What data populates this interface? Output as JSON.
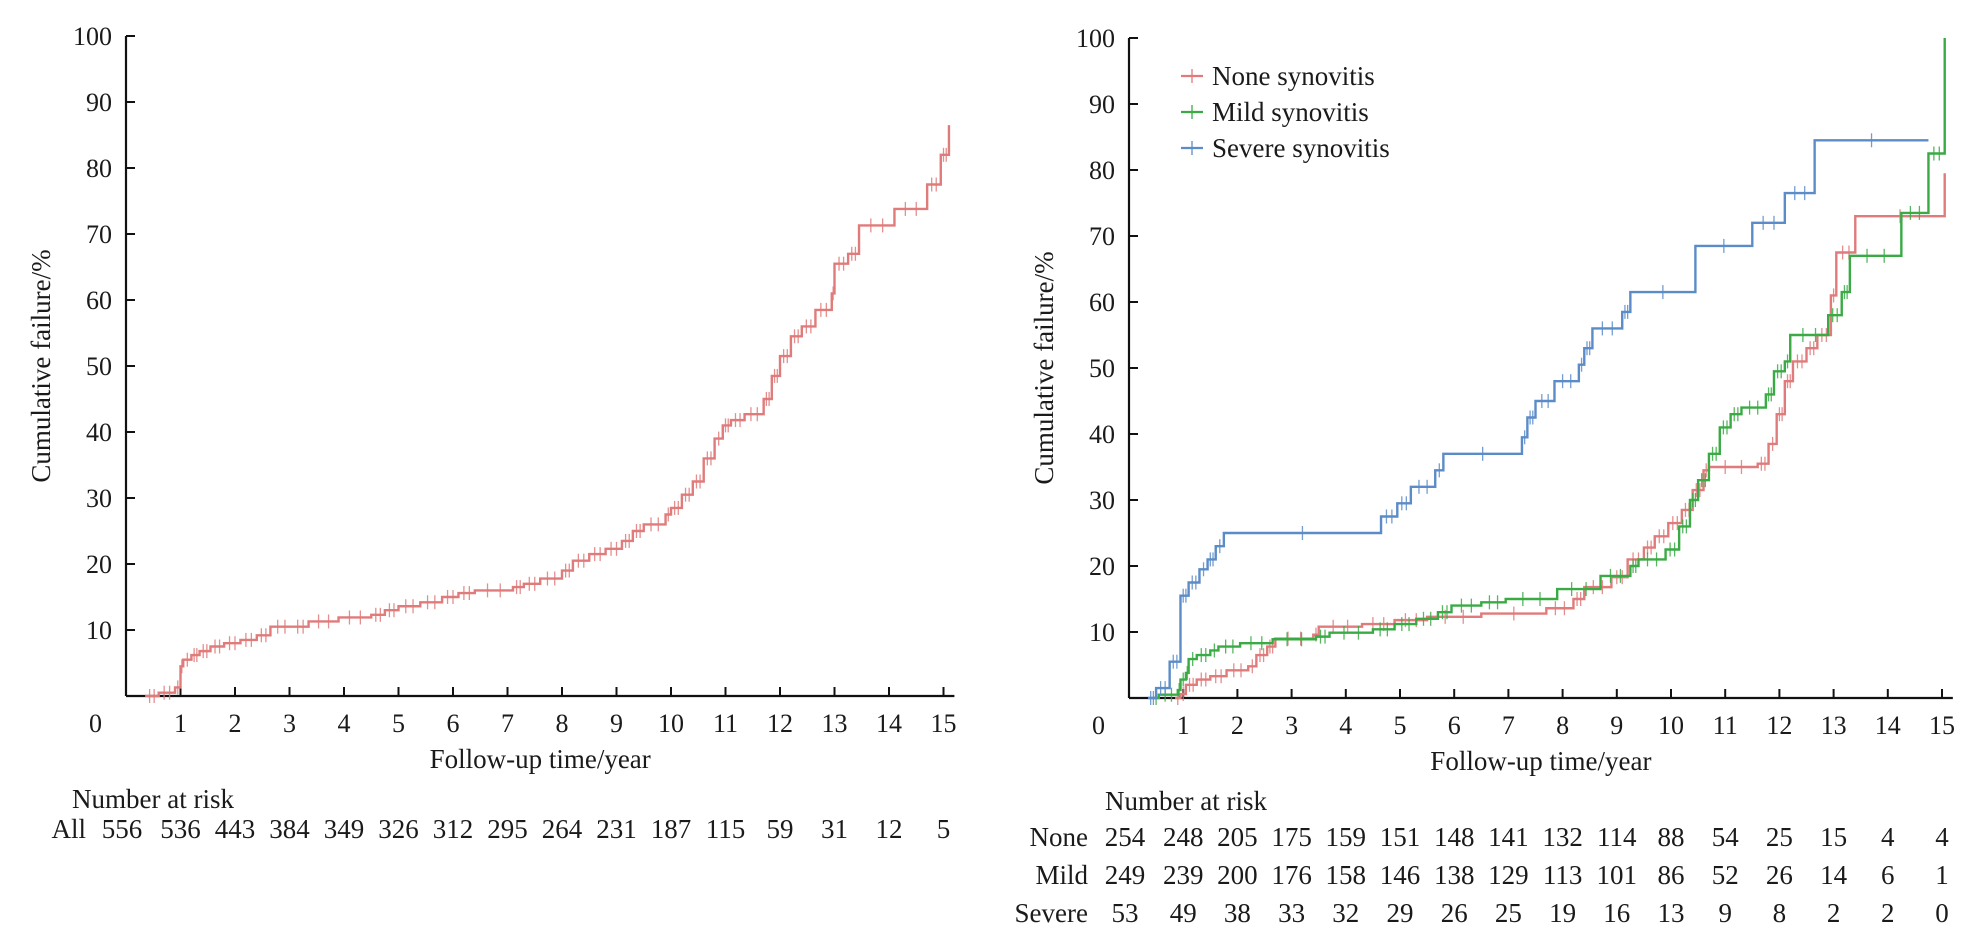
{
  "chart_data": [
    {
      "type": "line",
      "subtype": "kaplan-meier-cumulative-failure",
      "title": "",
      "xlabel": "Follow-up time/year",
      "ylabel": "Cumulative failure/%",
      "xlim": [
        0,
        15.2
      ],
      "ylim": [
        0,
        100
      ],
      "xticks": [
        "0",
        "1",
        "2",
        "3",
        "4",
        "5",
        "6",
        "7",
        "8",
        "9",
        "10",
        "11",
        "12",
        "13",
        "14",
        "15"
      ],
      "yticks": [
        "10",
        "20",
        "30",
        "40",
        "50",
        "60",
        "70",
        "80",
        "90",
        "100"
      ],
      "y_zero_label": "0",
      "grid": false,
      "legend": null,
      "series": [
        {
          "name": "All",
          "color": "#e07b7b",
          "points": [
            [
              0.35,
              0
            ],
            [
              0.6,
              0.5
            ],
            [
              0.9,
              1.3
            ],
            [
              1.0,
              4.5
            ],
            [
              1.05,
              5.5
            ],
            [
              1.2,
              6.2
            ],
            [
              1.35,
              6.8
            ],
            [
              1.55,
              7.5
            ],
            [
              1.8,
              8.0
            ],
            [
              2.1,
              8.5
            ],
            [
              2.4,
              9.2
            ],
            [
              2.65,
              10.5
            ],
            [
              3.05,
              10.5
            ],
            [
              3.35,
              11.3
            ],
            [
              3.9,
              11.9
            ],
            [
              4.5,
              12.3
            ],
            [
              4.75,
              13.0
            ],
            [
              5.0,
              13.6
            ],
            [
              5.4,
              14.2
            ],
            [
              5.8,
              15.0
            ],
            [
              6.1,
              15.6
            ],
            [
              6.4,
              16.0
            ],
            [
              7.1,
              16.5
            ],
            [
              7.3,
              17.0
            ],
            [
              7.6,
              17.8
            ],
            [
              8.0,
              19.0
            ],
            [
              8.2,
              20.5
            ],
            [
              8.5,
              21.5
            ],
            [
              8.8,
              22.3
            ],
            [
              9.1,
              23.5
            ],
            [
              9.3,
              25.0
            ],
            [
              9.5,
              26.0
            ],
            [
              9.9,
              27.5
            ],
            [
              10.0,
              28.5
            ],
            [
              10.2,
              30.5
            ],
            [
              10.4,
              32.5
            ],
            [
              10.6,
              36.0
            ],
            [
              10.8,
              39.0
            ],
            [
              10.95,
              41.0
            ],
            [
              11.1,
              41.8
            ],
            [
              11.35,
              42.7
            ],
            [
              11.7,
              45.0
            ],
            [
              11.85,
              48.5
            ],
            [
              12.0,
              51.5
            ],
            [
              12.2,
              54.5
            ],
            [
              12.4,
              56.0
            ],
            [
              12.65,
              58.5
            ],
            [
              12.95,
              61.0
            ],
            [
              13.0,
              65.5
            ],
            [
              13.25,
              67.0
            ],
            [
              13.45,
              71.3
            ],
            [
              14.1,
              73.8
            ],
            [
              14.7,
              77.5
            ],
            [
              14.95,
              82.0
            ],
            [
              15.1,
              86.5
            ]
          ],
          "censor_marks": true
        }
      ],
      "risk_table": {
        "title": "Number at risk",
        "rows": [
          {
            "label": "All",
            "color": "#e07b7b",
            "values": [
              556,
              536,
              443,
              384,
              349,
              326,
              312,
              295,
              264,
              231,
              187,
              115,
              59,
              31,
              12,
              5
            ]
          }
        ]
      }
    },
    {
      "type": "line",
      "subtype": "kaplan-meier-cumulative-failure",
      "title": "",
      "xlabel": "Follow-up time/year",
      "ylabel": "Cumulative failure/%",
      "xlim": [
        0,
        15.2
      ],
      "ylim": [
        0,
        100
      ],
      "xticks": [
        "0",
        "1",
        "2",
        "3",
        "4",
        "5",
        "6",
        "7",
        "8",
        "9",
        "10",
        "11",
        "12",
        "13",
        "14",
        "15"
      ],
      "yticks": [
        "10",
        "20",
        "30",
        "40",
        "50",
        "60",
        "70",
        "80",
        "90",
        "100"
      ],
      "y_zero_label": "0",
      "grid": false,
      "legend": "top-left",
      "series": [
        {
          "name": "None synovitis",
          "color": "#e07b7b",
          "points": [
            [
              0.85,
              0
            ],
            [
              0.95,
              0.6
            ],
            [
              1.05,
              2.0
            ],
            [
              1.25,
              2.8
            ],
            [
              1.5,
              3.3
            ],
            [
              1.8,
              4.2
            ],
            [
              2.2,
              4.8
            ],
            [
              2.35,
              6.5
            ],
            [
              2.55,
              7.8
            ],
            [
              2.7,
              9.0
            ],
            [
              3.4,
              9.6
            ],
            [
              3.5,
              10.8
            ],
            [
              4.3,
              11.2
            ],
            [
              4.9,
              11.8
            ],
            [
              5.5,
              12.3
            ],
            [
              6.5,
              12.8
            ],
            [
              7.7,
              13.6
            ],
            [
              8.2,
              15.0
            ],
            [
              8.4,
              16.8
            ],
            [
              8.9,
              18.3
            ],
            [
              9.2,
              21.0
            ],
            [
              9.5,
              22.8
            ],
            [
              9.7,
              24.5
            ],
            [
              9.95,
              26.5
            ],
            [
              10.2,
              28.5
            ],
            [
              10.4,
              31.5
            ],
            [
              10.6,
              34.5
            ],
            [
              10.7,
              35.0
            ],
            [
              11.6,
              35.5
            ],
            [
              11.8,
              38.5
            ],
            [
              11.95,
              43.0
            ],
            [
              12.1,
              48.0
            ],
            [
              12.25,
              51.0
            ],
            [
              12.5,
              53.0
            ],
            [
              12.7,
              55.0
            ],
            [
              12.95,
              61.0
            ],
            [
              13.05,
              67.5
            ],
            [
              13.4,
              73.0
            ],
            [
              15.05,
              79.5
            ]
          ]
        },
        {
          "name": "Mild synovitis",
          "color": "#3aaa45",
          "points": [
            [
              0.45,
              0
            ],
            [
              0.55,
              0.5
            ],
            [
              0.9,
              1.2
            ],
            [
              0.95,
              2.8
            ],
            [
              1.05,
              3.8
            ],
            [
              1.1,
              5.9
            ],
            [
              1.25,
              6.5
            ],
            [
              1.5,
              7.2
            ],
            [
              1.65,
              7.8
            ],
            [
              2.05,
              8.3
            ],
            [
              2.65,
              8.9
            ],
            [
              3.45,
              9.3
            ],
            [
              3.7,
              9.9
            ],
            [
              4.5,
              10.4
            ],
            [
              4.9,
              11.2
            ],
            [
              5.3,
              12.0
            ],
            [
              5.7,
              13.0
            ],
            [
              5.95,
              14.0
            ],
            [
              6.5,
              14.5
            ],
            [
              6.95,
              15.0
            ],
            [
              7.9,
              16.5
            ],
            [
              8.7,
              18.5
            ],
            [
              9.25,
              20.0
            ],
            [
              9.4,
              21.0
            ],
            [
              9.9,
              22.5
            ],
            [
              10.15,
              26.0
            ],
            [
              10.35,
              30.0
            ],
            [
              10.5,
              33.0
            ],
            [
              10.7,
              37.0
            ],
            [
              10.9,
              41.0
            ],
            [
              11.1,
              43.0
            ],
            [
              11.3,
              44.0
            ],
            [
              11.75,
              46.0
            ],
            [
              11.9,
              49.5
            ],
            [
              12.1,
              51.0
            ],
            [
              12.2,
              55.0
            ],
            [
              12.9,
              58.0
            ],
            [
              13.15,
              61.5
            ],
            [
              13.3,
              67.0
            ],
            [
              14.25,
              73.5
            ],
            [
              14.75,
              82.5
            ],
            [
              15.05,
              100
            ]
          ]
        },
        {
          "name": "Severe synovitis",
          "color": "#5b8cc8",
          "points": [
            [
              0.35,
              0
            ],
            [
              0.5,
              1.5
            ],
            [
              0.75,
              5.5
            ],
            [
              0.95,
              15.5
            ],
            [
              1.1,
              17.5
            ],
            [
              1.3,
              19.5
            ],
            [
              1.45,
              21.0
            ],
            [
              1.6,
              23.0
            ],
            [
              1.75,
              25.0
            ],
            [
              4.65,
              27.5
            ],
            [
              4.95,
              29.5
            ],
            [
              5.2,
              32.0
            ],
            [
              5.65,
              34.5
            ],
            [
              5.8,
              37.0
            ],
            [
              7.25,
              39.5
            ],
            [
              7.35,
              42.5
            ],
            [
              7.5,
              45.0
            ],
            [
              7.85,
              48.0
            ],
            [
              8.3,
              50.5
            ],
            [
              8.4,
              53.0
            ],
            [
              8.55,
              56.0
            ],
            [
              9.1,
              58.5
            ],
            [
              9.25,
              61.5
            ],
            [
              10.45,
              68.5
            ],
            [
              11.5,
              72.0
            ],
            [
              12.1,
              76.5
            ],
            [
              12.65,
              84.5
            ],
            [
              14.75,
              84.5
            ]
          ]
        }
      ],
      "risk_table": {
        "title": "Number at risk",
        "rows": [
          {
            "label": "None",
            "color": "#e07b7b",
            "values": [
              254,
              248,
              205,
              175,
              159,
              151,
              148,
              141,
              132,
              114,
              88,
              54,
              25,
              15,
              4,
              4
            ]
          },
          {
            "label": "Mild",
            "color": "#3aaa45",
            "values": [
              249,
              239,
              200,
              176,
              158,
              146,
              138,
              129,
              113,
              101,
              86,
              52,
              26,
              14,
              6,
              1
            ]
          },
          {
            "label": "Severe",
            "color": "#5b8cc8",
            "values": [
              53,
              49,
              38,
              33,
              32,
              29,
              26,
              25,
              19,
              16,
              13,
              9,
              8,
              2,
              2,
              0
            ]
          }
        ]
      }
    }
  ]
}
